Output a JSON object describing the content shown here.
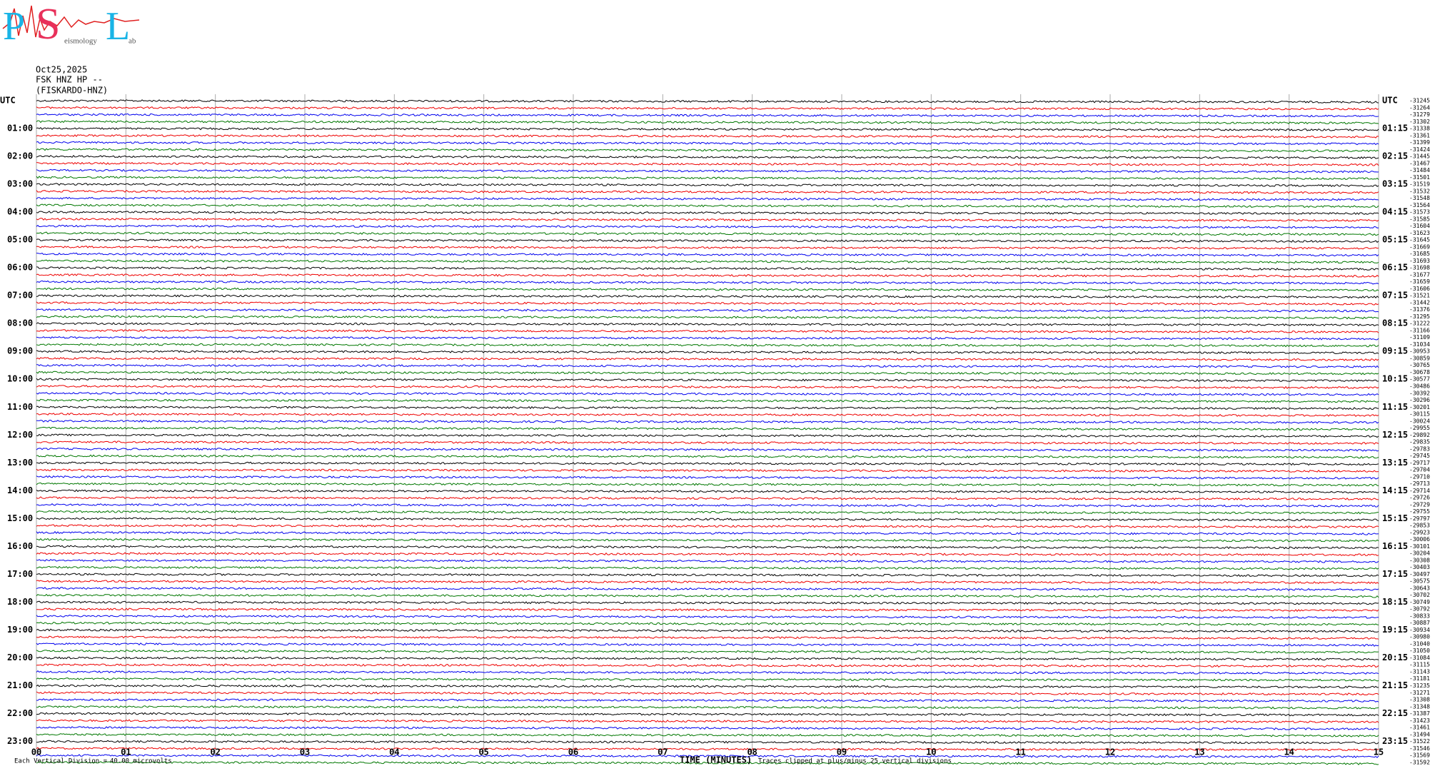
{
  "logo": {
    "letters": [
      "P",
      "S",
      "L"
    ],
    "words": [
      "eismology",
      "ab"
    ]
  },
  "header": {
    "date": "Oct25,2025",
    "station": "FSK HNZ HP --",
    "name": "(FISKARDO-HNZ)"
  },
  "left_labels": [
    "UTC",
    "01:00",
    "02:00",
    "03:00",
    "04:00",
    "05:00",
    "06:00",
    "07:00",
    "08:00",
    "09:00",
    "10:00",
    "11:00",
    "12:00",
    "13:00",
    "14:00",
    "15:00",
    "16:00",
    "17:00",
    "18:00",
    "19:00",
    "20:00",
    "21:00",
    "22:00",
    "23:00"
  ],
  "right_labels": [
    "UTC",
    "01:15",
    "02:15",
    "03:15",
    "04:15",
    "05:15",
    "06:15",
    "07:15",
    "08:15",
    "09:15",
    "10:15",
    "11:15",
    "12:15",
    "13:15",
    "14:15",
    "15:15",
    "16:15",
    "17:15",
    "18:15",
    "19:15",
    "20:15",
    "21:15",
    "22:15",
    "23:15"
  ],
  "offsets": [
    -31245,
    -31264,
    -31279,
    -31302,
    -31338,
    -31361,
    -31399,
    -31424,
    -31445,
    -31467,
    -31484,
    -31501,
    -31519,
    -31532,
    -31548,
    -31564,
    -31573,
    -31585,
    -31604,
    -31623,
    -31645,
    -31669,
    -31685,
    -31693,
    -31698,
    -31677,
    -31659,
    -31606,
    -31521,
    -31442,
    -31376,
    -31295,
    -31222,
    -31166,
    -31109,
    -31034,
    -30953,
    -30859,
    -30765,
    -30678,
    -30577,
    -30486,
    -30392,
    -30296,
    -30201,
    -30115,
    -30024,
    -29955,
    -29892,
    -29835,
    -29783,
    -29745,
    -29717,
    -29704,
    -29710,
    -29713,
    -29714,
    -29726,
    -29729,
    -29755,
    -29797,
    -29853,
    -29923,
    -30006,
    -30101,
    -30204,
    -30308,
    -30403,
    -30497,
    -30575,
    -30643,
    -30702,
    -30749,
    -30792,
    -30833,
    -30887,
    -30934,
    -30980,
    -31040,
    -31050,
    -31084,
    -31115,
    -31143,
    -31181,
    -31235,
    -31271,
    -31308,
    -31348,
    -31387,
    -31423,
    -31461,
    -31494,
    -31522,
    -31546,
    -31569,
    -31592
  ],
  "x_ticks": [
    "00",
    "01",
    "02",
    "03",
    "04",
    "05",
    "06",
    "07",
    "08",
    "09",
    "10",
    "11",
    "12",
    "13",
    "14",
    "15"
  ],
  "footer": {
    "division": "Each Vertical Division =",
    "division_value": "40.00 microvolts",
    "axis_title": "TIME (MINUTES)",
    "clip_note": "Traces clipped at plus/minus 25 vertical divisions"
  }
}
